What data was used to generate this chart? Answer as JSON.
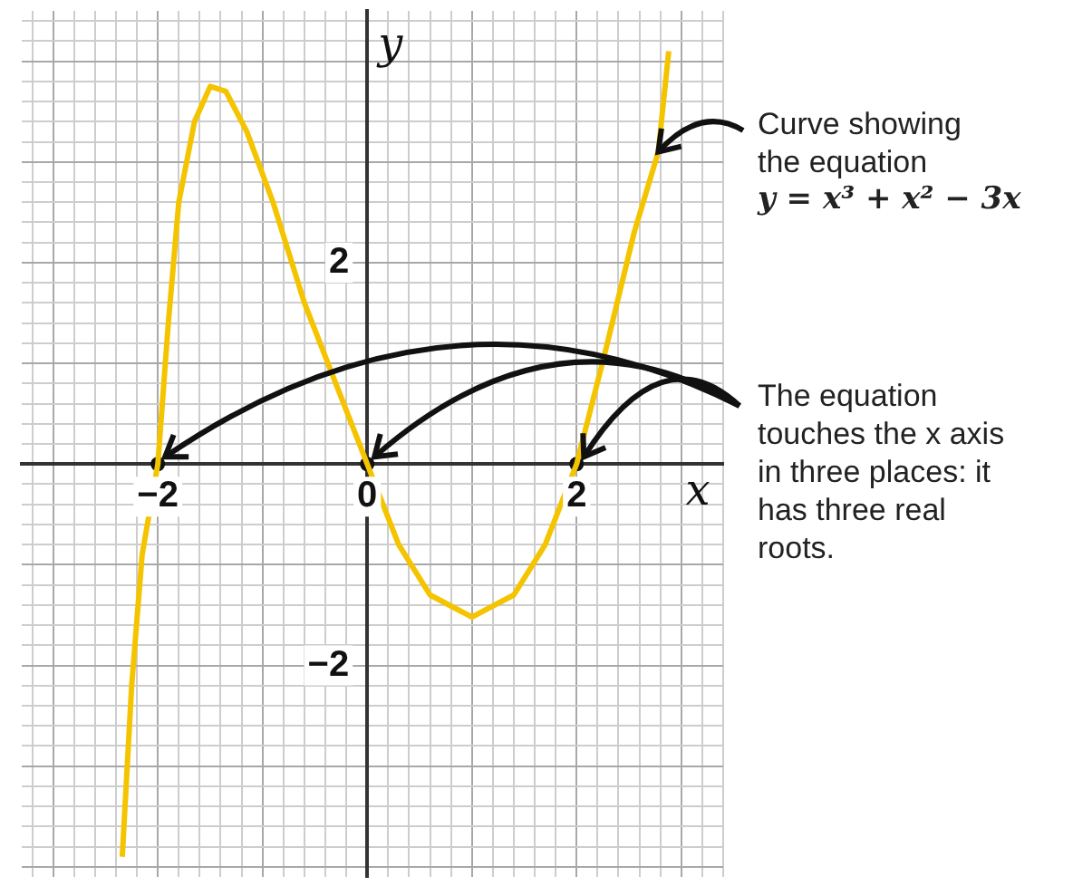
{
  "chart_data": {
    "type": "line",
    "xlabel": "x",
    "ylabel": "y",
    "xlim": [
      -3.3,
      3.4
    ],
    "ylim": [
      -4.1,
      4.5
    ],
    "xticks": [
      {
        "value": -3.2,
        "label": null
      },
      {
        "value": -3,
        "label": null
      },
      {
        "value": -2.8,
        "label": null
      },
      {
        "value": -2.6,
        "label": null
      },
      {
        "value": -2.4,
        "label": null
      },
      {
        "value": -2.2,
        "label": null
      },
      {
        "value": -2,
        "label": "−2"
      },
      {
        "value": -1.8,
        "label": null
      },
      {
        "value": -1.6,
        "label": null
      },
      {
        "value": -1.4,
        "label": null
      },
      {
        "value": -1.2,
        "label": null
      },
      {
        "value": -1,
        "label": null
      },
      {
        "value": -0.8,
        "label": null
      },
      {
        "value": -0.6,
        "label": null
      },
      {
        "value": -0.4,
        "label": null
      },
      {
        "value": -0.2,
        "label": null
      },
      {
        "value": 0,
        "label": "0"
      },
      {
        "value": 0.2,
        "label": null
      },
      {
        "value": 0.4,
        "label": null
      },
      {
        "value": 0.6,
        "label": null
      },
      {
        "value": 0.8,
        "label": null
      },
      {
        "value": 1,
        "label": null
      },
      {
        "value": 1.2,
        "label": null
      },
      {
        "value": 1.4,
        "label": null
      },
      {
        "value": 1.6,
        "label": null
      },
      {
        "value": 1.8,
        "label": null
      },
      {
        "value": 2,
        "label": "2"
      },
      {
        "value": 2.2,
        "label": null
      },
      {
        "value": 2.4,
        "label": null
      },
      {
        "value": 2.6,
        "label": null
      },
      {
        "value": 2.8,
        "label": null
      },
      {
        "value": 3,
        "label": null
      },
      {
        "value": 3.2,
        "label": null
      },
      {
        "value": 3.4,
        "label": null
      }
    ],
    "yticks": [
      {
        "value": -4,
        "label": null
      },
      {
        "value": -3.8,
        "label": null
      },
      {
        "value": -3.6,
        "label": null
      },
      {
        "value": -3.4,
        "label": null
      },
      {
        "value": -3.2,
        "label": null
      },
      {
        "value": -3,
        "label": null
      },
      {
        "value": -2.8,
        "label": null
      },
      {
        "value": -2.6,
        "label": null
      },
      {
        "value": -2.4,
        "label": null
      },
      {
        "value": -2.2,
        "label": null
      },
      {
        "value": -2,
        "label": "−2"
      },
      {
        "value": -1.8,
        "label": null
      },
      {
        "value": -1.6,
        "label": null
      },
      {
        "value": -1.4,
        "label": null
      },
      {
        "value": -1.2,
        "label": null
      },
      {
        "value": -1,
        "label": null
      },
      {
        "value": -0.8,
        "label": null
      },
      {
        "value": -0.6,
        "label": null
      },
      {
        "value": -0.4,
        "label": null
      },
      {
        "value": -0.2,
        "label": null
      },
      {
        "value": 0,
        "label": null
      },
      {
        "value": 0.2,
        "label": null
      },
      {
        "value": 0.4,
        "label": null
      },
      {
        "value": 0.6,
        "label": null
      },
      {
        "value": 0.8,
        "label": null
      },
      {
        "value": 1,
        "label": null
      },
      {
        "value": 1.2,
        "label": null
      },
      {
        "value": 1.4,
        "label": null
      },
      {
        "value": 1.6,
        "label": null
      },
      {
        "value": 1.8,
        "label": null
      },
      {
        "value": 2,
        "label": "2"
      },
      {
        "value": 2.2,
        "label": null
      },
      {
        "value": 2.4,
        "label": null
      },
      {
        "value": 2.6,
        "label": null
      },
      {
        "value": 2.8,
        "label": null
      },
      {
        "value": 3,
        "label": null
      },
      {
        "value": 3.2,
        "label": null
      },
      {
        "value": 3.4,
        "label": null
      },
      {
        "value": 3.6,
        "label": null
      },
      {
        "value": 3.8,
        "label": null
      },
      {
        "value": 4,
        "label": null
      },
      {
        "value": 4.2,
        "label": null
      },
      {
        "value": 4.4,
        "label": null
      }
    ],
    "grid": true,
    "legend": false,
    "marker": "none",
    "series": [
      {
        "color": "#f5c400",
        "x": [
          -2.34,
          -2.25,
          -2.15,
          -2.0,
          -1.9,
          -1.8,
          -1.65,
          -1.5,
          -1.35,
          -1.15,
          -0.9,
          -0.6,
          -0.3,
          0,
          0.3,
          0.6,
          1.0,
          1.4,
          1.7,
          2.0,
          2.27,
          2.55,
          2.78,
          2.88
        ],
        "values": [
          -3.9,
          -2.2,
          -0.9,
          0,
          1.4,
          2.6,
          3.4,
          3.75,
          3.7,
          3.3,
          2.6,
          1.6,
          0.8,
          0,
          -0.8,
          -1.3,
          -1.52,
          -1.3,
          -0.8,
          0,
          1.1,
          2.3,
          3.1,
          4.1
        ]
      },
      {
        "type": "scatter",
        "color": "#111111",
        "marker": "circle",
        "x": [
          -2,
          0,
          2
        ],
        "values": [
          0,
          0,
          0
        ]
      }
    ],
    "annotations": [
      {
        "text": "Curve showing the equation\ny = x³ + x² − 3x",
        "x": 2.78,
        "y": 3.1
      },
      {
        "text": "The equation touches the x axis in three places: it has three real roots.",
        "x": 2,
        "y": 0
      }
    ]
  }
}
